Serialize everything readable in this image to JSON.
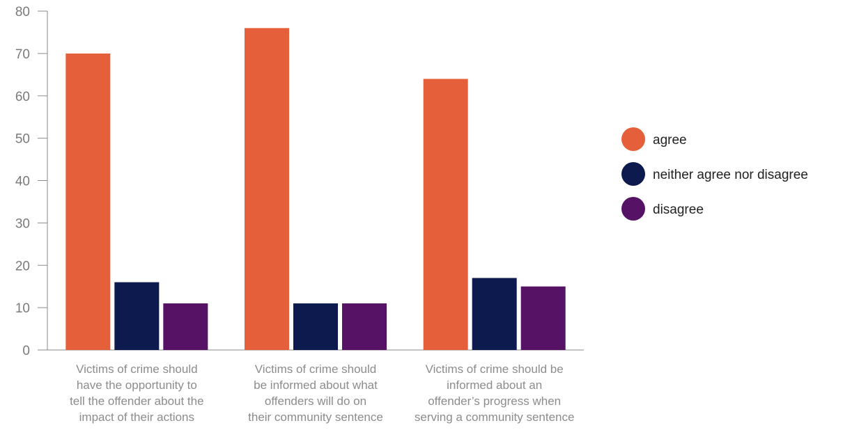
{
  "chart_data": {
    "type": "bar",
    "title": "",
    "xlabel": "",
    "ylabel": "",
    "ylim": [
      0,
      80
    ],
    "yticks": [
      0,
      10,
      20,
      30,
      40,
      50,
      60,
      70,
      80
    ],
    "grid": false,
    "legend_position": "right",
    "categories": [
      [
        "Victims of crime should",
        "have the opportunity to",
        "tell the offender about the",
        "impact of their actions"
      ],
      [
        "Victims of crime should",
        "be informed about what",
        "offenders will do on",
        "their community sentence"
      ],
      [
        "Victims of crime should be",
        "informed about an",
        "offender’s progress when",
        "serving a community sentence"
      ]
    ],
    "series": [
      {
        "name": "agree",
        "color": "#e5603a",
        "values": [
          70,
          76,
          64
        ]
      },
      {
        "name": "neither agree nor disagree",
        "color": "#0c1a4e",
        "values": [
          16,
          11,
          17
        ]
      },
      {
        "name": "disagree",
        "color": "#561264",
        "values": [
          11,
          11,
          15
        ]
      }
    ]
  }
}
